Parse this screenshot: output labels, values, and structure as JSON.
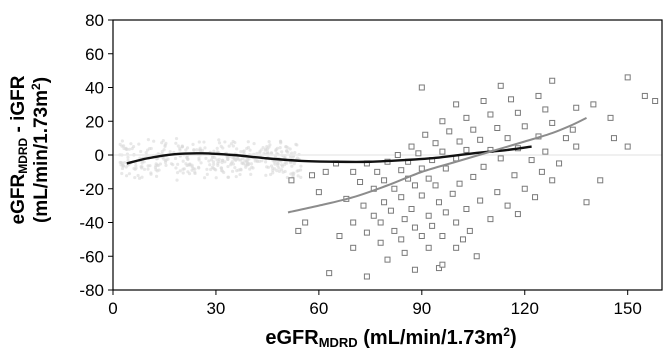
{
  "chart_data": {
    "type": "scatter",
    "xlabel": {
      "main": "eGFR",
      "sub": "MDRD",
      "rest": " (mL/min/1.73m",
      "sup": "2",
      "end": ")"
    },
    "ylabel": {
      "line1_main": "eGFR",
      "line1_sub": "MDRD",
      "line1_rest": " - iGFR",
      "line2_main": "(mL/min/1.73m",
      "line2_sup": "2",
      "line2_end": ")"
    },
    "xlim": [
      0,
      160
    ],
    "ylim": [
      -80,
      80
    ],
    "xticks": [
      0,
      30,
      60,
      90,
      120,
      150
    ],
    "yticks": [
      -80,
      -60,
      -40,
      -20,
      0,
      20,
      40,
      60,
      80
    ],
    "grid": false,
    "zero_line": true,
    "series": [
      {
        "marker": "faint-circle",
        "color": "#d9d9d9",
        "cloud_bounds": {
          "x": [
            2,
            55
          ],
          "y": [
            -15,
            10
          ]
        }
      },
      {
        "marker": "open-square",
        "color": "#7a7a7a",
        "points": [
          [
            63,
            -70
          ],
          [
            74,
            -72
          ],
          [
            88,
            -68
          ],
          [
            95,
            -67
          ],
          [
            80,
            -62
          ],
          [
            85,
            -58
          ],
          [
            92,
            -55
          ],
          [
            70,
            -55
          ],
          [
            100,
            -55
          ],
          [
            78,
            -52
          ],
          [
            84,
            -50
          ],
          [
            90,
            -48
          ],
          [
            96,
            -48
          ],
          [
            66,
            -48
          ],
          [
            74,
            -46
          ],
          [
            82,
            -45
          ],
          [
            104,
            -45
          ],
          [
            88,
            -43
          ],
          [
            93,
            -42
          ],
          [
            78,
            -40
          ],
          [
            100,
            -40
          ],
          [
            70,
            -40
          ],
          [
            85,
            -38
          ],
          [
            110,
            -38
          ],
          [
            76,
            -36
          ],
          [
            92,
            -36
          ],
          [
            97,
            -34
          ],
          [
            81,
            -33
          ],
          [
            87,
            -32
          ],
          [
            103,
            -32
          ],
          [
            73,
            -30
          ],
          [
            79,
            -28
          ],
          [
            95,
            -28
          ],
          [
            107,
            -27
          ],
          [
            68,
            -26
          ],
          [
            84,
            -25
          ],
          [
            90,
            -24
          ],
          [
            99,
            -23
          ],
          [
            112,
            -22
          ],
          [
            76,
            -20
          ],
          [
            82,
            -20
          ],
          [
            88,
            -18
          ],
          [
            94,
            -18
          ],
          [
            101,
            -17
          ],
          [
            72,
            -16
          ],
          [
            79,
            -15
          ],
          [
            86,
            -14
          ],
          [
            92,
            -14
          ],
          [
            105,
            -13
          ],
          [
            117,
            -12
          ],
          [
            70,
            -10
          ],
          [
            77,
            -10
          ],
          [
            84,
            -9
          ],
          [
            90,
            -8
          ],
          [
            97,
            -8
          ],
          [
            108,
            -7
          ],
          [
            74,
            -5
          ],
          [
            80,
            -4
          ],
          [
            86,
            -4
          ],
          [
            93,
            -3
          ],
          [
            100,
            -2
          ],
          [
            113,
            -2
          ],
          [
            122,
            -3
          ],
          [
            83,
            0
          ],
          [
            89,
            1
          ],
          [
            96,
            2
          ],
          [
            103,
            3
          ],
          [
            110,
            3
          ],
          [
            118,
            4
          ],
          [
            126,
            2
          ],
          [
            87,
            5
          ],
          [
            94,
            7
          ],
          [
            101,
            8
          ],
          [
            107,
            9
          ],
          [
            115,
            10
          ],
          [
            124,
            11
          ],
          [
            132,
            10
          ],
          [
            91,
            12
          ],
          [
            98,
            14
          ],
          [
            105,
            15
          ],
          [
            112,
            16
          ],
          [
            120,
            17
          ],
          [
            128,
            19
          ],
          [
            96,
            20
          ],
          [
            103,
            22
          ],
          [
            110,
            24
          ],
          [
            118,
            25
          ],
          [
            126,
            27
          ],
          [
            135,
            28
          ],
          [
            100,
            30
          ],
          [
            108,
            32
          ],
          [
            116,
            33
          ],
          [
            124,
            35
          ],
          [
            90,
            40
          ],
          [
            113,
            41
          ],
          [
            128,
            44
          ],
          [
            150,
            46
          ],
          [
            140,
            30
          ],
          [
            145,
            22
          ],
          [
            155,
            35
          ],
          [
            158,
            32
          ],
          [
            62,
            -10
          ],
          [
            65,
            -5
          ],
          [
            60,
            -22
          ],
          [
            58,
            -12
          ],
          [
            52,
            -15
          ],
          [
            56,
            -40
          ],
          [
            54,
            -45
          ],
          [
            115,
            -30
          ],
          [
            120,
            -20
          ],
          [
            125,
            -10
          ],
          [
            130,
            -5
          ],
          [
            138,
            -28
          ],
          [
            142,
            -15
          ],
          [
            135,
            5
          ],
          [
            146,
            10
          ],
          [
            150,
            5
          ],
          [
            134,
            15
          ],
          [
            128,
            -15
          ],
          [
            123,
            -25
          ],
          [
            118,
            -35
          ],
          [
            106,
            -60
          ],
          [
            96,
            -65
          ],
          [
            102,
            -50
          ]
        ]
      }
    ],
    "curves": [
      {
        "color": "#111111",
        "points": [
          [
            4,
            -5
          ],
          [
            10,
            -2
          ],
          [
            18,
            0.5
          ],
          [
            26,
            1
          ],
          [
            35,
            0
          ],
          [
            45,
            -2
          ],
          [
            55,
            -3.5
          ],
          [
            65,
            -4
          ],
          [
            75,
            -4
          ],
          [
            85,
            -3
          ],
          [
            95,
            -1.5
          ],
          [
            105,
            1
          ],
          [
            115,
            3
          ],
          [
            122,
            5
          ]
        ]
      },
      {
        "color": "#8c8c8c",
        "points": [
          [
            51,
            -34
          ],
          [
            60,
            -30
          ],
          [
            70,
            -25
          ],
          [
            80,
            -18
          ],
          [
            90,
            -10
          ],
          [
            100,
            -4
          ],
          [
            110,
            2
          ],
          [
            120,
            8
          ],
          [
            128,
            13
          ],
          [
            134,
            18
          ],
          [
            138,
            22
          ]
        ]
      }
    ]
  }
}
